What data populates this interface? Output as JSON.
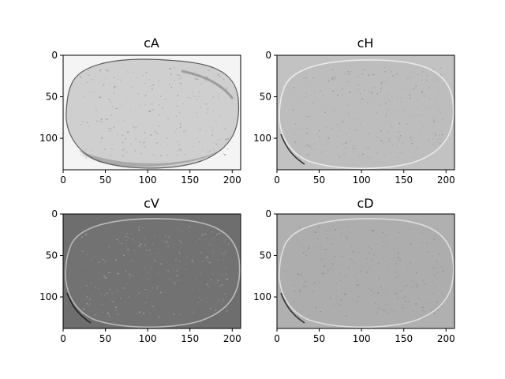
{
  "chart_data": [
    {
      "type": "heatmap",
      "title": "cA",
      "xticks": [
        0,
        50,
        100,
        150,
        200
      ],
      "yticks": [
        0,
        50,
        100
      ],
      "xlim": [
        0,
        210
      ],
      "ylim": [
        138,
        0
      ],
      "background": "#f4f4f4",
      "blob_fill": "#cfcfcf",
      "blob_edge": "#444444",
      "texture": "#8a8a8a"
    },
    {
      "type": "heatmap",
      "title": "cH",
      "xticks": [
        0,
        50,
        100,
        150,
        200
      ],
      "yticks": [
        0,
        50,
        100
      ],
      "xlim": [
        0,
        210
      ],
      "ylim": [
        138,
        0
      ],
      "background": "#c2c2c2",
      "blob_fill": "#bdbdbd",
      "blob_edge": "#f2f2f2",
      "texture": "#8c8c8c"
    },
    {
      "type": "heatmap",
      "title": "cV",
      "xticks": [
        0,
        50,
        100,
        150,
        200
      ],
      "yticks": [
        0,
        50,
        100
      ],
      "xlim": [
        0,
        210
      ],
      "ylim": [
        138,
        0
      ],
      "background": "#6e6e6e",
      "blob_fill": "#727272",
      "blob_edge": "#c8c8c8",
      "texture": "#b0b0b0"
    },
    {
      "type": "heatmap",
      "title": "cD",
      "xticks": [
        0,
        50,
        100,
        150,
        200
      ],
      "yticks": [
        0,
        50,
        100
      ],
      "xlim": [
        0,
        210
      ],
      "ylim": [
        138,
        0
      ],
      "background": "#b0b0b0",
      "blob_fill": "#adadad",
      "blob_edge": "#e6e6e6",
      "texture": "#7e7e7e"
    }
  ]
}
